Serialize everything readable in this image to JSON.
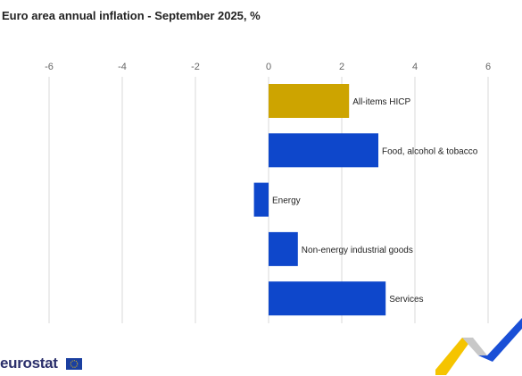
{
  "title": "Euro area annual inflation - September 2025, %",
  "logo": {
    "text": "eurostat"
  },
  "colors": {
    "highlight": "#cda400",
    "bar": "#0e47cb",
    "grid": "#d9d9d9",
    "tick": "#666666",
    "label": "#222222",
    "deco_yellow": "#f5c400",
    "deco_blue": "#1a4fd6",
    "deco_grey": "#c8c8c8"
  },
  "chart_data": {
    "type": "bar",
    "orientation": "horizontal",
    "title": "Euro area annual inflation - September 2025, %",
    "xlim": [
      -6,
      6
    ],
    "xticks": [
      "-6",
      "-4",
      "-2",
      "0",
      "2",
      "4",
      "6"
    ],
    "grid": "vertical",
    "categories": [
      "All-items HICP",
      "Food, alcohol & tobacco",
      "Energy",
      "Non-energy industrial goods",
      "Services"
    ],
    "values": [
      2.2,
      3.0,
      -0.4,
      0.8,
      3.2
    ],
    "highlighted_category": "All-items HICP"
  }
}
